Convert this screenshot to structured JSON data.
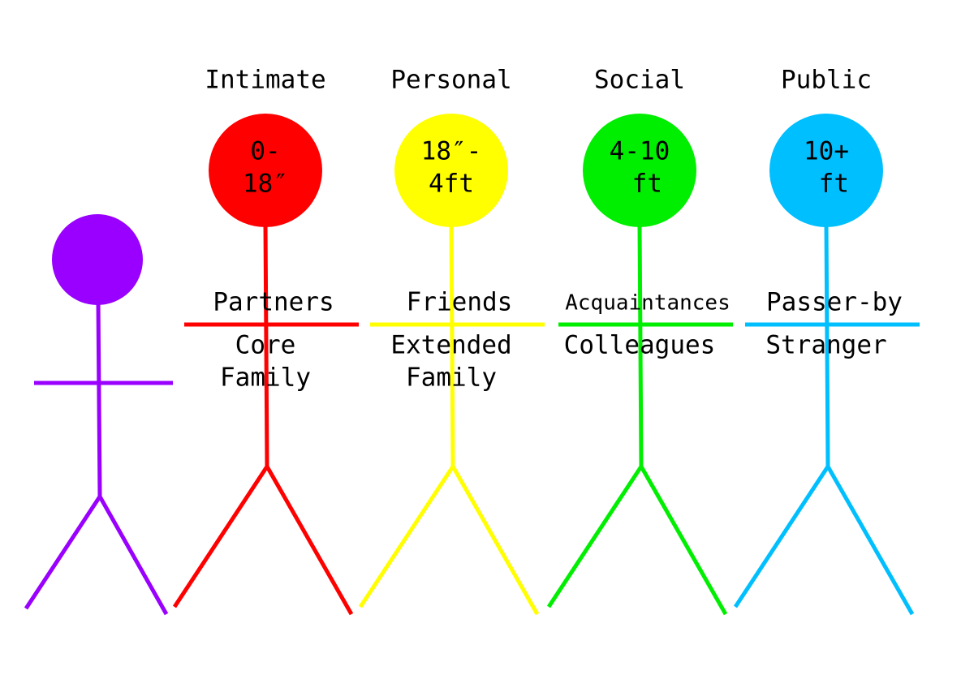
{
  "zones": [
    {
      "name": "Intimate",
      "distance": [
        "0-",
        "18″"
      ],
      "upper": "Partners",
      "lower": [
        "Core",
        "Family"
      ]
    },
    {
      "name": "Personal",
      "distance": [
        "18″-",
        "4ft"
      ],
      "upper": "Friends",
      "lower": [
        "Extended",
        "Family"
      ]
    },
    {
      "name": "Social",
      "distance": [
        "4-10",
        " ft"
      ],
      "upper": "Acquaintances",
      "lower": [
        "Colleagues"
      ]
    },
    {
      "name": "Public",
      "distance": [
        "10+",
        " ft"
      ],
      "upper": "Passer-by",
      "lower": [
        "Stranger"
      ]
    }
  ]
}
